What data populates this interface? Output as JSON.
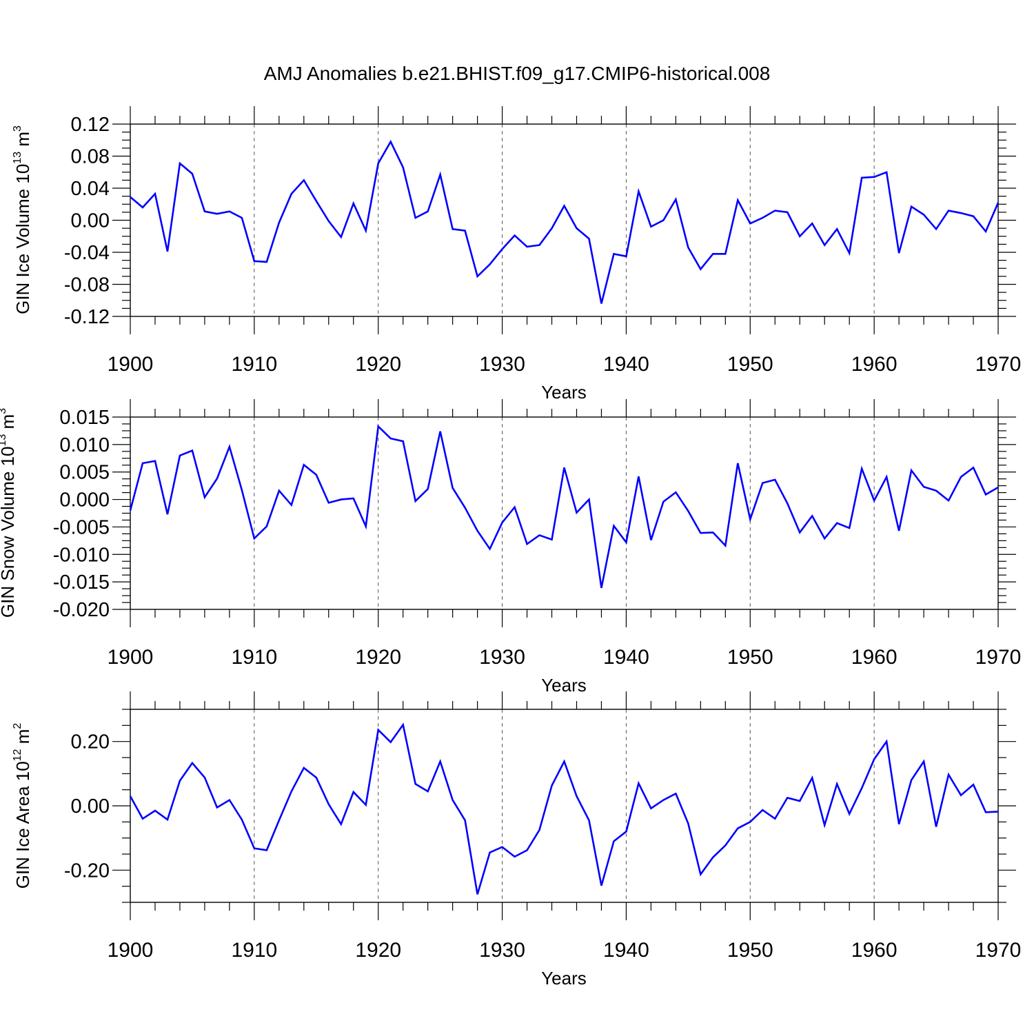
{
  "figure_title": "AMJ Anomalies b.e21.BHIST.f09_g17.CMIP6-historical.008",
  "chart_data": [
    {
      "type": "line",
      "name": "ice_volume",
      "title": "AMJ Anomalies b.e21.BHIST.f09_g17.CMIP6-historical.008",
      "xlabel": "Years",
      "ylabel_main": "GIN Ice Volume 10",
      "ylabel_exp": "13",
      "ylabel_unit": " m",
      "ylabel_unit_exp": "3",
      "xlim": [
        1900,
        1970
      ],
      "ylim": [
        -0.12,
        0.12
      ],
      "yticks": [
        -0.12,
        -0.08,
        -0.04,
        0.0,
        0.04,
        0.08,
        0.12
      ],
      "ytick_labels": [
        "-0.12",
        "-0.08",
        "-0.04",
        "0.00",
        "0.04",
        "0.08",
        "0.12"
      ],
      "xticks": [
        1900,
        1910,
        1920,
        1930,
        1940,
        1950,
        1960,
        1970
      ],
      "xtick_labels": [
        "1900",
        "1910",
        "1920",
        "1930",
        "1940",
        "1950",
        "1960",
        "1970"
      ],
      "x_start": 1900,
      "values": [
        0.029,
        0.016,
        0.033,
        -0.039,
        0.071,
        0.058,
        0.011,
        0.008,
        0.011,
        0.003,
        -0.051,
        -0.052,
        -0.003,
        0.033,
        0.05,
        0.024,
        -0.001,
        -0.021,
        0.021,
        -0.013,
        0.071,
        0.098,
        0.066,
        0.003,
        0.011,
        0.057,
        -0.011,
        -0.013,
        -0.07,
        -0.055,
        -0.036,
        -0.019,
        -0.033,
        -0.031,
        -0.01,
        0.018,
        -0.01,
        -0.023,
        -0.104,
        -0.042,
        -0.045,
        0.036,
        -0.008,
        0.0,
        0.026,
        -0.034,
        -0.061,
        -0.042,
        -0.042,
        0.025,
        -0.004,
        0.003,
        0.012,
        0.01,
        -0.02,
        -0.004,
        -0.031,
        -0.011,
        -0.041,
        0.053,
        0.054,
        0.06,
        -0.041,
        0.017,
        0.007,
        -0.011,
        0.012,
        0.009,
        0.005,
        -0.014,
        0.022
      ]
    },
    {
      "type": "line",
      "name": "snow_volume",
      "xlabel": "Years",
      "ylabel_main": "GIN Snow Volume 10",
      "ylabel_exp": "13",
      "ylabel_unit": " m",
      "ylabel_unit_exp": "3",
      "xlim": [
        1900,
        1970
      ],
      "ylim": [
        -0.02,
        0.015
      ],
      "yticks": [
        -0.02,
        -0.015,
        -0.01,
        -0.005,
        0.0,
        0.005,
        0.01,
        0.015
      ],
      "ytick_labels": [
        "-0.020",
        "-0.015",
        "-0.010",
        "-0.005",
        "0.000",
        "0.005",
        "0.010",
        "0.015"
      ],
      "xticks": [
        1900,
        1910,
        1920,
        1930,
        1940,
        1950,
        1960,
        1970
      ],
      "xtick_labels": [
        "1900",
        "1910",
        "1920",
        "1930",
        "1940",
        "1950",
        "1960",
        "1970"
      ],
      "x_start": 1900,
      "values": [
        -0.002,
        0.0066,
        0.007,
        -0.0027,
        0.008,
        0.0089,
        0.0004,
        0.0038,
        0.0096,
        0.0017,
        -0.0071,
        -0.0049,
        0.0016,
        -0.001,
        0.0063,
        0.0045,
        -0.0006,
        0.0,
        0.0002,
        -0.0049,
        0.0133,
        0.0111,
        0.0106,
        -0.0003,
        0.0019,
        0.0124,
        0.0021,
        -0.0015,
        -0.0057,
        -0.009,
        -0.0042,
        -0.0014,
        -0.0081,
        -0.0065,
        -0.0073,
        0.0058,
        -0.0024,
        0.0,
        -0.0161,
        -0.0048,
        -0.0078,
        0.0042,
        -0.0074,
        -0.0004,
        0.0013,
        -0.0021,
        -0.0061,
        -0.006,
        -0.0084,
        0.0066,
        -0.0036,
        0.003,
        0.0036,
        -0.0007,
        -0.006,
        -0.003,
        -0.0071,
        -0.0043,
        -0.0052,
        0.0056,
        -0.0002,
        0.0041,
        -0.0057,
        0.0053,
        0.0023,
        0.0016,
        -0.0002,
        0.0041,
        0.0058,
        0.0009,
        0.0022
      ]
    },
    {
      "type": "line",
      "name": "ice_area",
      "xlabel": "Years",
      "ylabel_main": "GIN Ice Area 10",
      "ylabel_exp": "12",
      "ylabel_unit": " m",
      "ylabel_unit_exp": "2",
      "xlim": [
        1900,
        1970
      ],
      "ylim": [
        -0.3,
        0.3
      ],
      "yticks": [
        -0.2,
        0.0,
        0.2
      ],
      "ytick_labels": [
        "-0.20",
        "0.00",
        "0.20"
      ],
      "yminor_step": 0.05,
      "xticks": [
        1900,
        1910,
        1920,
        1930,
        1940,
        1950,
        1960,
        1970
      ],
      "xtick_labels": [
        "1900",
        "1910",
        "1920",
        "1930",
        "1940",
        "1950",
        "1960",
        "1970"
      ],
      "x_start": 1900,
      "values": [
        0.03,
        -0.04,
        -0.015,
        -0.043,
        0.078,
        0.133,
        0.088,
        -0.005,
        0.018,
        -0.043,
        -0.132,
        -0.138,
        -0.045,
        0.045,
        0.118,
        0.088,
        0.005,
        -0.057,
        0.043,
        0.003,
        0.236,
        0.198,
        0.252,
        0.068,
        0.045,
        0.138,
        0.018,
        -0.045,
        -0.275,
        -0.145,
        -0.128,
        -0.158,
        -0.138,
        -0.075,
        0.063,
        0.138,
        0.03,
        -0.045,
        -0.248,
        -0.11,
        -0.08,
        0.07,
        -0.008,
        0.018,
        0.038,
        -0.055,
        -0.213,
        -0.16,
        -0.123,
        -0.07,
        -0.05,
        -0.013,
        -0.04,
        0.025,
        0.015,
        0.087,
        -0.06,
        0.068,
        -0.025,
        0.055,
        0.145,
        0.2,
        -0.057,
        0.08,
        0.138,
        -0.065,
        0.097,
        0.033,
        0.066,
        -0.02,
        -0.018
      ]
    }
  ]
}
